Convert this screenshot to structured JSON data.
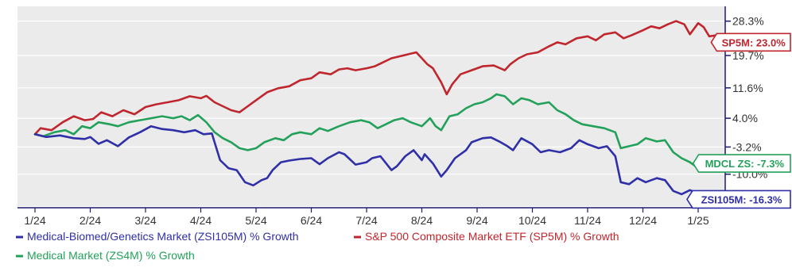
{
  "chart_data": {
    "type": "line",
    "x_ticks": [
      "1/24",
      "2/24",
      "3/24",
      "4/24",
      "5/24",
      "6/24",
      "7/24",
      "8/24",
      "9/24",
      "10/24",
      "11/24",
      "12/24",
      "1/25"
    ],
    "y_ticks": [
      "28.3%",
      "19.7%",
      "11.6%",
      "4.0%",
      "-3.2%",
      "-10.0%"
    ],
    "y_tick_values": [
      28.3,
      19.7,
      11.6,
      4.0,
      -3.2,
      -10.0
    ],
    "ylim": [
      -18.0,
      32.0
    ],
    "grid": true,
    "legend_position": "bottom-left",
    "colors": {
      "background": "#ebebeb",
      "grid": "#ffffff",
      "axis": "#1a1a6e"
    },
    "series": [
      {
        "name": "Medical-Biomed/Genetics Market (ZSI105M) % Growth",
        "key": "ZSI105M",
        "color": "#2f2fa8",
        "badge": "ZSI105M: -16.3%",
        "badge_value": -16.3,
        "points": [
          [
            0,
            0.0
          ],
          [
            0.2,
            -0.7
          ],
          [
            0.45,
            -0.3
          ],
          [
            0.7,
            -1.0
          ],
          [
            0.9,
            -1.2
          ],
          [
            1.0,
            -0.7
          ],
          [
            1.15,
            -2.4
          ],
          [
            1.3,
            -1.5
          ],
          [
            1.5,
            -3.0
          ],
          [
            1.7,
            -0.8
          ],
          [
            1.9,
            0.5
          ],
          [
            2.1,
            2.0
          ],
          [
            2.3,
            1.3
          ],
          [
            2.5,
            1.0
          ],
          [
            2.7,
            0.5
          ],
          [
            2.9,
            1.0
          ],
          [
            3.05,
            0.0
          ],
          [
            3.2,
            0.2
          ],
          [
            3.35,
            -6.5
          ],
          [
            3.5,
            -8.5
          ],
          [
            3.65,
            -9.0
          ],
          [
            3.8,
            -12.0
          ],
          [
            3.95,
            -12.8
          ],
          [
            4.1,
            -11.5
          ],
          [
            4.2,
            -11.0
          ],
          [
            4.3,
            -9.0
          ],
          [
            4.45,
            -7.0
          ],
          [
            4.6,
            -6.6
          ],
          [
            4.8,
            -6.2
          ],
          [
            5.0,
            -6.0
          ],
          [
            5.15,
            -7.5
          ],
          [
            5.3,
            -6.0
          ],
          [
            5.5,
            -4.5
          ],
          [
            5.6,
            -5.0
          ],
          [
            5.8,
            -7.6
          ],
          [
            6.0,
            -7.0
          ],
          [
            6.1,
            -6.0
          ],
          [
            6.25,
            -5.5
          ],
          [
            6.45,
            -9.0
          ],
          [
            6.55,
            -8.0
          ],
          [
            6.7,
            -5.5
          ],
          [
            6.85,
            -4.0
          ],
          [
            7.0,
            -6.5
          ],
          [
            7.05,
            -5.0
          ],
          [
            7.2,
            -7.3
          ],
          [
            7.35,
            -10.6
          ],
          [
            7.45,
            -9.0
          ],
          [
            7.6,
            -6.0
          ],
          [
            7.8,
            -4.0
          ],
          [
            7.9,
            -2.0
          ],
          [
            8.1,
            -1.0
          ],
          [
            8.25,
            -0.8
          ],
          [
            8.4,
            -1.8
          ],
          [
            8.55,
            -3.0
          ],
          [
            8.65,
            -4.0
          ],
          [
            8.8,
            -1.0
          ],
          [
            9.0,
            -2.5
          ],
          [
            9.15,
            -4.5
          ],
          [
            9.3,
            -4.0
          ],
          [
            9.5,
            -4.5
          ],
          [
            9.7,
            -3.5
          ],
          [
            9.85,
            -1.5
          ],
          [
            10.0,
            -2.5
          ],
          [
            10.2,
            -3.5
          ],
          [
            10.35,
            -3.0
          ],
          [
            10.5,
            -5.5
          ],
          [
            10.6,
            -12.0
          ],
          [
            10.75,
            -12.5
          ],
          [
            10.9,
            -11.0
          ],
          [
            11.05,
            -12.0
          ],
          [
            11.25,
            -11.0
          ],
          [
            11.4,
            -11.5
          ],
          [
            11.55,
            -14.2
          ],
          [
            11.7,
            -15.0
          ],
          [
            11.85,
            -14.0
          ],
          [
            12.0,
            -14.8
          ],
          [
            12.15,
            -15.7
          ],
          [
            12.3,
            -15.2
          ],
          [
            12.45,
            -16.3
          ]
        ]
      },
      {
        "name": "S&P 500 Composite Market ETF (SP5M) % Growth",
        "key": "SP5M",
        "color": "#c0262d",
        "badge": "SP5M: 23.0%",
        "badge_value": 23.0,
        "points": [
          [
            0,
            0.0
          ],
          [
            0.1,
            1.5
          ],
          [
            0.3,
            1.0
          ],
          [
            0.5,
            3.0
          ],
          [
            0.7,
            4.5
          ],
          [
            0.9,
            3.5
          ],
          [
            1.05,
            3.8
          ],
          [
            1.2,
            5.5
          ],
          [
            1.4,
            4.5
          ],
          [
            1.6,
            6.0
          ],
          [
            1.8,
            5.0
          ],
          [
            2.0,
            6.8
          ],
          [
            2.2,
            7.5
          ],
          [
            2.4,
            8.0
          ],
          [
            2.6,
            8.5
          ],
          [
            2.8,
            9.5
          ],
          [
            3.0,
            9.0
          ],
          [
            3.1,
            9.6
          ],
          [
            3.25,
            8.0
          ],
          [
            3.4,
            7.0
          ],
          [
            3.55,
            6.0
          ],
          [
            3.7,
            5.5
          ],
          [
            3.85,
            7.0
          ],
          [
            4.0,
            8.5
          ],
          [
            4.2,
            10.5
          ],
          [
            4.4,
            11.5
          ],
          [
            4.6,
            12.0
          ],
          [
            4.8,
            13.5
          ],
          [
            5.0,
            14.0
          ],
          [
            5.15,
            15.5
          ],
          [
            5.35,
            15.0
          ],
          [
            5.5,
            16.2
          ],
          [
            5.65,
            16.5
          ],
          [
            5.8,
            16.0
          ],
          [
            6.0,
            16.5
          ],
          [
            6.15,
            17.0
          ],
          [
            6.3,
            18.0
          ],
          [
            6.45,
            19.0
          ],
          [
            6.6,
            19.5
          ],
          [
            6.75,
            20.0
          ],
          [
            6.9,
            20.5
          ],
          [
            7.0,
            19.0
          ],
          [
            7.1,
            17.5
          ],
          [
            7.2,
            16.5
          ],
          [
            7.35,
            13.0
          ],
          [
            7.45,
            10.0
          ],
          [
            7.55,
            12.5
          ],
          [
            7.7,
            15.0
          ],
          [
            7.9,
            16.0
          ],
          [
            8.1,
            17.0
          ],
          [
            8.3,
            17.2
          ],
          [
            8.5,
            16.0
          ],
          [
            8.6,
            17.5
          ],
          [
            8.75,
            19.0
          ],
          [
            8.9,
            20.0
          ],
          [
            9.1,
            20.5
          ],
          [
            9.3,
            22.0
          ],
          [
            9.45,
            23.0
          ],
          [
            9.6,
            22.5
          ],
          [
            9.8,
            24.0
          ],
          [
            10.0,
            24.5
          ],
          [
            10.15,
            23.5
          ],
          [
            10.3,
            25.0
          ],
          [
            10.5,
            25.5
          ],
          [
            10.65,
            24.0
          ],
          [
            10.8,
            24.8
          ],
          [
            11.0,
            26.0
          ],
          [
            11.15,
            27.0
          ],
          [
            11.3,
            26.5
          ],
          [
            11.45,
            27.5
          ],
          [
            11.6,
            28.3
          ],
          [
            11.75,
            27.5
          ],
          [
            11.85,
            25.0
          ],
          [
            12.0,
            27.8
          ],
          [
            12.1,
            26.8
          ],
          [
            12.2,
            24.5
          ],
          [
            12.35,
            24.8
          ],
          [
            12.45,
            23.0
          ]
        ]
      },
      {
        "name": "Medical Market (ZS4M) % Growth",
        "key": "ZS4M",
        "color": "#23a15a",
        "badge": "MDCL ZS: -7.3%",
        "badge_value": -7.3,
        "points": [
          [
            0,
            0.0
          ],
          [
            0.15,
            -0.5
          ],
          [
            0.35,
            0.5
          ],
          [
            0.55,
            1.0
          ],
          [
            0.7,
            0.0
          ],
          [
            0.85,
            2.0
          ],
          [
            1.0,
            1.5
          ],
          [
            1.15,
            3.0
          ],
          [
            1.35,
            2.5
          ],
          [
            1.5,
            2.0
          ],
          [
            1.7,
            3.0
          ],
          [
            1.9,
            3.5
          ],
          [
            2.1,
            4.0
          ],
          [
            2.3,
            4.5
          ],
          [
            2.5,
            4.0
          ],
          [
            2.65,
            4.5
          ],
          [
            2.8,
            3.5
          ],
          [
            2.95,
            4.8
          ],
          [
            3.1,
            3.0
          ],
          [
            3.25,
            0.5
          ],
          [
            3.4,
            -1.0
          ],
          [
            3.55,
            -2.0
          ],
          [
            3.7,
            -3.5
          ],
          [
            3.85,
            -4.0
          ],
          [
            4.0,
            -3.5
          ],
          [
            4.15,
            -2.0
          ],
          [
            4.35,
            -1.0
          ],
          [
            4.5,
            -1.5
          ],
          [
            4.65,
            0.0
          ],
          [
            4.8,
            0.5
          ],
          [
            5.0,
            0.0
          ],
          [
            5.15,
            1.5
          ],
          [
            5.3,
            0.8
          ],
          [
            5.5,
            2.0
          ],
          [
            5.7,
            3.0
          ],
          [
            5.9,
            3.5
          ],
          [
            6.05,
            3.0
          ],
          [
            6.2,
            1.5
          ],
          [
            6.35,
            2.5
          ],
          [
            6.5,
            3.5
          ],
          [
            6.65,
            4.0
          ],
          [
            6.8,
            3.0
          ],
          [
            7.0,
            2.0
          ],
          [
            7.15,
            4.0
          ],
          [
            7.25,
            2.0
          ],
          [
            7.35,
            1.0
          ],
          [
            7.5,
            4.5
          ],
          [
            7.65,
            5.0
          ],
          [
            7.8,
            6.5
          ],
          [
            7.95,
            7.5
          ],
          [
            8.1,
            8.0
          ],
          [
            8.25,
            9.0
          ],
          [
            8.35,
            10.0
          ],
          [
            8.5,
            9.5
          ],
          [
            8.65,
            7.5
          ],
          [
            8.8,
            9.0
          ],
          [
            8.95,
            8.5
          ],
          [
            9.1,
            7.5
          ],
          [
            9.3,
            8.0
          ],
          [
            9.45,
            6.0
          ],
          [
            9.6,
            5.0
          ],
          [
            9.75,
            3.5
          ],
          [
            9.9,
            2.5
          ],
          [
            10.1,
            2.0
          ],
          [
            10.3,
            1.5
          ],
          [
            10.5,
            0.5
          ],
          [
            10.6,
            -3.5
          ],
          [
            10.75,
            -3.0
          ],
          [
            10.9,
            -2.5
          ],
          [
            11.05,
            -1.0
          ],
          [
            11.25,
            -1.8
          ],
          [
            11.4,
            -1.5
          ],
          [
            11.55,
            -4.5
          ],
          [
            11.7,
            -6.0
          ],
          [
            11.85,
            -7.0
          ],
          [
            12.0,
            -8.5
          ],
          [
            12.1,
            -7.0
          ],
          [
            12.25,
            -8.0
          ],
          [
            12.35,
            -7.5
          ],
          [
            12.45,
            -7.3
          ]
        ]
      }
    ]
  }
}
